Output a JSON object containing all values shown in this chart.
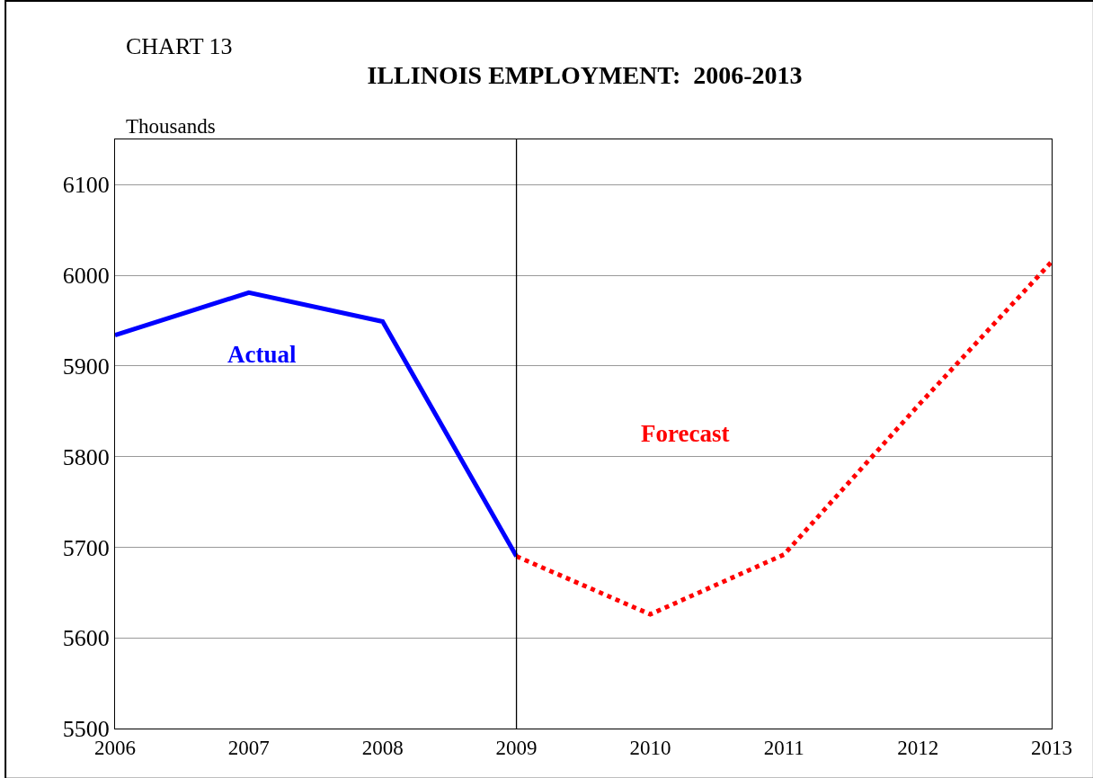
{
  "chart_data": {
    "type": "line",
    "title": "ILLINOIS EMPLOYMENT:  2006-2013",
    "ylabel": "Thousands",
    "annotations": [
      "CHART 13"
    ],
    "series": [
      {
        "name": "Actual",
        "color": "#0000ff",
        "line_style": "solid",
        "x": [
          2006,
          2007,
          2008,
          2009
        ],
        "values": [
          5934,
          5981,
          5949,
          5690
        ]
      },
      {
        "name": "Forecast",
        "color": "#ff0000",
        "line_style": "dotted",
        "x": [
          2009,
          2010,
          2011,
          2012,
          2013
        ],
        "values": [
          5690,
          5626,
          5692,
          5856,
          6015
        ]
      }
    ],
    "ref_lines": [
      {
        "axis": "x",
        "value": 2009,
        "color": "#000000"
      }
    ],
    "xlim": [
      2006,
      2013
    ],
    "xticks": [
      2006,
      2007,
      2008,
      2009,
      2010,
      2011,
      2012,
      2013
    ],
    "ylim": [
      5500,
      6150
    ],
    "yticks": [
      5500,
      5600,
      5700,
      5800,
      5900,
      6000,
      6100
    ],
    "grid": "y",
    "legend": false,
    "marker": "none"
  }
}
